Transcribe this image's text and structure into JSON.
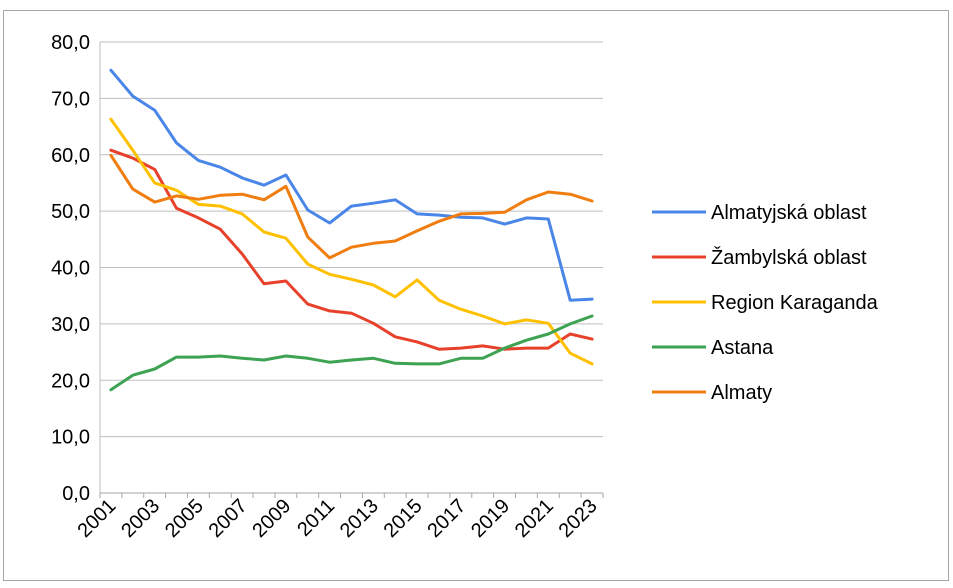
{
  "chart_data": {
    "type": "line",
    "categories": [
      "2001",
      null,
      "2003",
      null,
      "2005",
      null,
      "2007",
      null,
      "2009",
      null,
      "2011",
      null,
      "2013",
      null,
      "2015",
      null,
      "2017",
      null,
      "2019",
      null,
      "2021",
      null,
      "2023"
    ],
    "series": [
      {
        "name": "Almatyjská oblast",
        "color": "#4a86e8",
        "values": [
          75.0,
          70.4,
          67.9,
          62.1,
          59.0,
          57.8,
          55.9,
          54.6,
          56.4,
          50.2,
          47.9,
          50.9,
          51.4,
          52.0,
          49.5,
          49.3,
          48.9,
          48.8,
          47.7,
          48.8,
          48.6,
          34.2,
          34.4
        ]
      },
      {
        "name": "Žambylská oblast",
        "color": "#e8412b",
        "values": [
          60.8,
          59.4,
          57.4,
          50.5,
          48.8,
          46.8,
          42.4,
          37.1,
          37.6,
          33.5,
          32.3,
          31.9,
          30.1,
          27.7,
          26.8,
          25.5,
          25.7,
          26.1,
          25.5,
          25.7,
          25.7,
          28.2,
          27.3
        ]
      },
      {
        "name": "Region Karaganda",
        "color": "#ffc000",
        "values": [
          66.3,
          60.8,
          55.0,
          53.7,
          51.2,
          50.9,
          49.5,
          46.3,
          45.2,
          40.6,
          38.8,
          37.9,
          36.9,
          34.8,
          37.8,
          34.2,
          32.6,
          31.4,
          30.0,
          30.7,
          30.1,
          24.8,
          22.9
        ]
      },
      {
        "name": "Astana",
        "color": "#3da252",
        "values": [
          18.3,
          20.9,
          22.0,
          24.1,
          24.1,
          24.3,
          23.9,
          23.6,
          24.3,
          23.9,
          23.2,
          23.6,
          23.9,
          23.0,
          22.9,
          22.9,
          23.9,
          23.9,
          25.7,
          27.1,
          28.2,
          30.0,
          31.4
        ]
      },
      {
        "name": "Almaty",
        "color": "#f07d0f",
        "values": [
          59.9,
          53.9,
          51.6,
          52.7,
          52.1,
          52.8,
          53.0,
          52.0,
          54.4,
          45.4,
          41.7,
          43.6,
          44.3,
          44.7,
          46.5,
          48.2,
          49.5,
          49.6,
          49.8,
          52.0,
          53.4,
          53.0,
          51.8
        ]
      }
    ],
    "ylim": [
      0,
      80
    ],
    "yticks": [
      {
        "value": 0,
        "label": "0,0"
      },
      {
        "value": 10,
        "label": "10,0"
      },
      {
        "value": 20,
        "label": "20,0"
      },
      {
        "value": 30,
        "label": "30,0"
      },
      {
        "value": 40,
        "label": "40,0"
      },
      {
        "value": 50,
        "label": "50,0"
      },
      {
        "value": 60,
        "label": "60,0"
      },
      {
        "value": 70,
        "label": "70,0"
      },
      {
        "value": 80,
        "label": "80,0"
      }
    ],
    "grid": true,
    "legend": "right"
  }
}
